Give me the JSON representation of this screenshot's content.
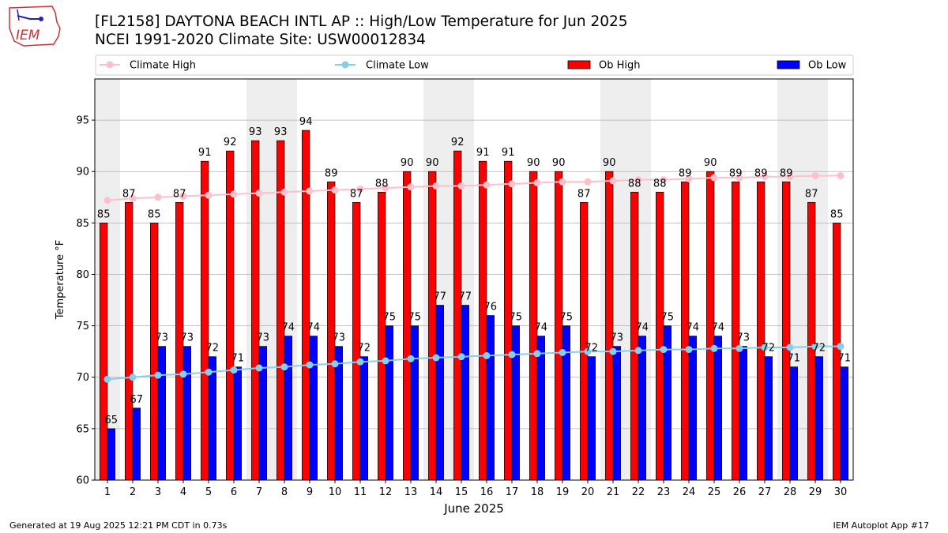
{
  "header": {
    "title_line1": "[FL2158] DAYTONA BEACH INTL AP :: High/Low Temperature for Jun 2025",
    "title_line2": "NCEI 1991-2020 Climate Site: USW00012834",
    "logo_text": "IEM"
  },
  "footer": {
    "generated": "Generated at 19 Aug 2025 12:21 PM CDT in 0.73s",
    "app": "IEM Autoplot App #17"
  },
  "colors": {
    "ob_high": "#ff0000",
    "ob_low": "#0000ff",
    "climate_high": "#ffc0cb",
    "climate_low": "#87ceeb",
    "weekend_shade": "#eeeeee",
    "grid": "#b0b0b0"
  },
  "chart_data": {
    "type": "bar",
    "xlabel": "June 2025",
    "ylabel": "Temperature °F",
    "ylim": [
      60,
      99
    ],
    "yticks": [
      60,
      65,
      70,
      75,
      80,
      85,
      90,
      95
    ],
    "grid": "horizontal",
    "legend_placement": "top",
    "categories": [
      "1",
      "2",
      "3",
      "4",
      "5",
      "6",
      "7",
      "8",
      "9",
      "10",
      "11",
      "12",
      "13",
      "14",
      "15",
      "16",
      "17",
      "18",
      "19",
      "20",
      "21",
      "22",
      "23",
      "24",
      "25",
      "26",
      "27",
      "28",
      "29",
      "30"
    ],
    "shaded_days": [
      1,
      7,
      8,
      14,
      15,
      21,
      22,
      28,
      29
    ],
    "series": [
      {
        "name": "Ob High",
        "kind": "bar",
        "values": [
          85,
          87,
          85,
          87,
          91,
          92,
          93,
          93,
          94,
          89,
          87,
          88,
          90,
          90,
          92,
          91,
          91,
          90,
          90,
          87,
          90,
          88,
          88,
          89,
          90,
          89,
          89,
          89,
          87,
          85
        ]
      },
      {
        "name": "Ob Low",
        "kind": "bar",
        "values": [
          65,
          67,
          73,
          73,
          72,
          71,
          73,
          74,
          74,
          73,
          72,
          75,
          75,
          77,
          77,
          76,
          75,
          74,
          75,
          72,
          73,
          74,
          75,
          74,
          74,
          73,
          72,
          71,
          72,
          71
        ]
      },
      {
        "name": "Climate High",
        "kind": "line",
        "values": [
          87.2,
          87.4,
          87.5,
          87.6,
          87.7,
          87.8,
          87.9,
          88.0,
          88.1,
          88.2,
          88.3,
          88.4,
          88.5,
          88.6,
          88.6,
          88.7,
          88.8,
          88.9,
          89.0,
          89.0,
          89.1,
          89.2,
          89.2,
          89.3,
          89.4,
          89.4,
          89.5,
          89.5,
          89.6,
          89.6
        ]
      },
      {
        "name": "Climate Low",
        "kind": "line",
        "values": [
          69.8,
          70.0,
          70.2,
          70.3,
          70.5,
          70.7,
          70.9,
          71.0,
          71.2,
          71.3,
          71.5,
          71.6,
          71.8,
          71.9,
          72.0,
          72.1,
          72.2,
          72.3,
          72.4,
          72.5,
          72.5,
          72.6,
          72.7,
          72.7,
          72.8,
          72.8,
          72.9,
          72.9,
          73.0,
          73.0
        ]
      }
    ]
  }
}
